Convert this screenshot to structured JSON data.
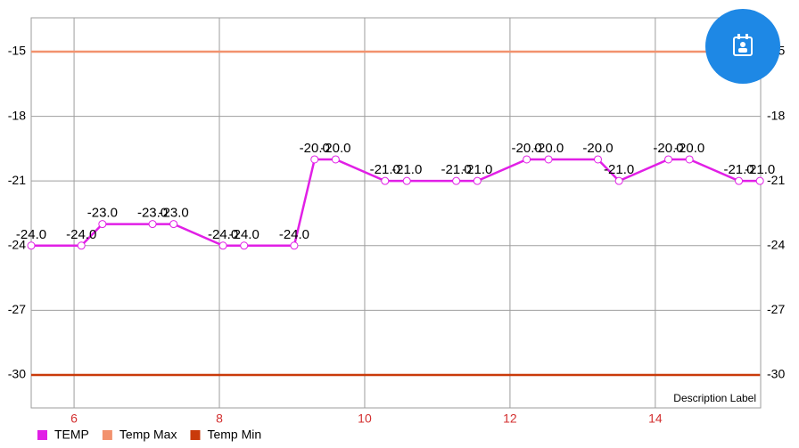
{
  "chart_data": {
    "type": "line",
    "x": [
      5.41,
      6.1,
      6.39,
      7.08,
      7.37,
      8.05,
      8.34,
      9.03,
      9.31,
      9.6,
      10.28,
      10.58,
      11.26,
      11.55,
      12.23,
      12.53,
      13.21,
      13.5,
      14.18,
      14.47,
      15.15,
      15.44
    ],
    "series": [
      {
        "name": "TEMP",
        "color": "#e11fe6",
        "values": [
          -24,
          -24,
          -23,
          -23,
          -23,
          -24,
          -24,
          -24,
          -20,
          -20,
          -21,
          -21,
          -21,
          -21,
          -20,
          -20,
          -20,
          -21,
          -20,
          -20,
          -21,
          -21
        ],
        "value_labels": [
          "-24.0",
          "-24.0",
          "-23.0",
          "-23.0",
          "-23.0",
          "-24.0",
          "-24.0",
          "-24.0",
          "-20.0",
          "-20.0",
          "-21.0",
          "-21.0",
          "-21.0",
          "-21.0",
          "-20.0",
          "-20.0",
          "-20.0",
          "-21.0",
          "-20.0",
          "-20.0",
          "-21.0",
          "-21.0"
        ]
      },
      {
        "name": "Temp Max",
        "color": "#f2926e",
        "values": [
          -15,
          -15,
          -15,
          -15,
          -15,
          -15,
          -15,
          -15,
          -15,
          -15,
          -15,
          -15,
          -15,
          -15,
          -15,
          -15,
          -15,
          -15,
          -15,
          -15,
          -15,
          -15
        ]
      },
      {
        "name": "Temp Min",
        "color": "#c93a0a",
        "values": [
          -30,
          -30,
          -30,
          -30,
          -30,
          -30,
          -30,
          -30,
          -30,
          -30,
          -30,
          -30,
          -30,
          -30,
          -30,
          -30,
          -30,
          -30,
          -30,
          -30,
          -30,
          -30
        ]
      }
    ],
    "xlim": [
      5.41,
      15.45
    ],
    "xticks": [
      6,
      8,
      10,
      12,
      14
    ],
    "ylim": [
      -31.53,
      -13.43
    ],
    "yticks": [
      -15,
      -18,
      -21,
      -24,
      -27,
      -30
    ],
    "grid": true,
    "description": "Description Label"
  }
}
